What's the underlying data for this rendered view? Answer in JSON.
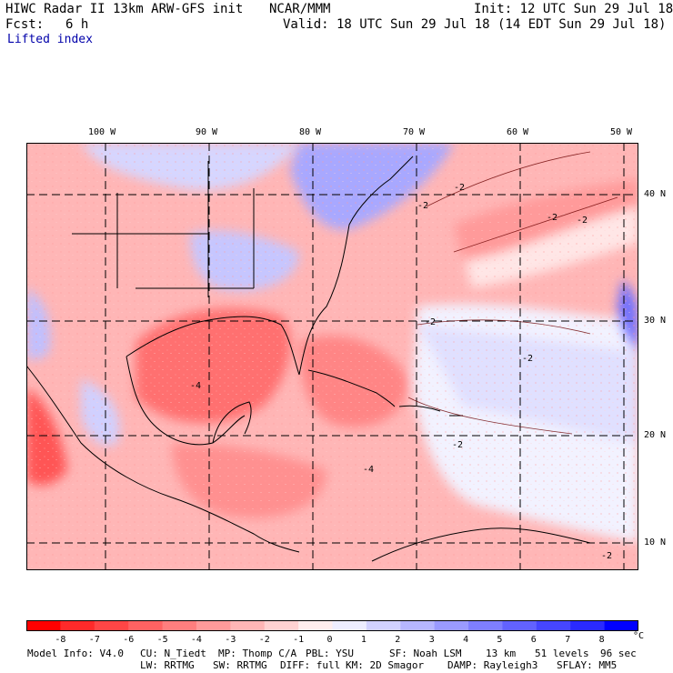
{
  "header": {
    "title": "HIWC Radar II 13km ARW-GFS init",
    "org": "NCAR/MMM",
    "init": "Init: 12 UTC Sun 29 Jul 18",
    "fcst_label": "Fcst:",
    "fcst_value": "6 h",
    "valid": "Valid: 18 UTC Sun 29 Jul 18 (14 EDT Sun 29 Jul 18)",
    "field": "Lifted index"
  },
  "map": {
    "lon_labels": [
      "100 W",
      "90 W",
      "80 W",
      "70 W",
      "60 W",
      "50 W"
    ],
    "lat_labels": [
      "40 N",
      "30 N",
      "20 N",
      "10 N"
    ],
    "contour_labels": [
      "-2",
      "-2",
      "-2",
      "-2",
      "-4",
      "-2",
      "-2",
      "-2",
      "-4",
      "-2"
    ]
  },
  "colorbar": {
    "unit": "°C",
    "ticks": [
      "-8",
      "-7",
      "-6",
      "-5",
      "-4",
      "-3",
      "-2",
      "-1",
      "0",
      "1",
      "2",
      "3",
      "4",
      "5",
      "6",
      "7",
      "8"
    ],
    "colors": [
      "#ff0000",
      "#ff2a2a",
      "#ff4646",
      "#ff6262",
      "#ff7e7e",
      "#ff9a9a",
      "#ffb6b6",
      "#ffd2d2",
      "#ffeeee",
      "#eeeeff",
      "#d2d2ff",
      "#b6b6ff",
      "#9a9aff",
      "#7e7eff",
      "#6262ff",
      "#4646ff",
      "#2a2aff",
      "#0000ff"
    ]
  },
  "footer": {
    "line1": [
      "Model Info: V4.0",
      "CU: N_Tiedt",
      "MP: Thomp C/A",
      "PBL: YSU",
      "SF: Noah LSM",
      "13 km",
      "51 levels",
      "96 sec"
    ],
    "line2": [
      "LW: RRTMG",
      "SW: RRTMG",
      "DIFF: full",
      "KM: 2D Smagor",
      "DAMP: Rayleigh3",
      "SFLAY: MM5"
    ]
  }
}
